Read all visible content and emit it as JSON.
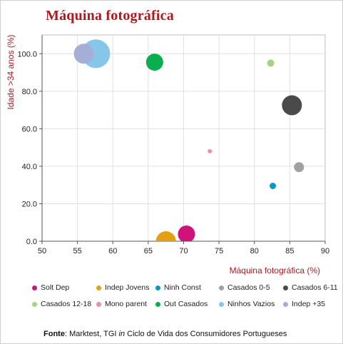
{
  "chart_data": {
    "type": "scatter",
    "title": "Máquina fotográfica",
    "xlabel": "Máquina fotográfica (%)",
    "ylabel": "Idade >34 anos (%)",
    "xlim": [
      50,
      90
    ],
    "ylim": [
      0,
      110
    ],
    "x_ticks": [
      "50",
      "55",
      "60",
      "65",
      "70",
      "75",
      "80",
      "85",
      "90"
    ],
    "y_ticks": [
      "0.0",
      "20.0",
      "40.0",
      "60.0",
      "80.0",
      "100.0"
    ],
    "grid": true,
    "legend_position": "bottom",
    "series": [
      {
        "name": "Solt Dep",
        "color": "#d0127b",
        "x": 70.4,
        "y": 3.8,
        "size": 12
      },
      {
        "name": "Indep Jovens",
        "color": "#e3a010",
        "x": 67.5,
        "y": 0.0,
        "size": 14
      },
      {
        "name": "Ninh Const",
        "color": "#1296c8",
        "x": 82.6,
        "y": 29.5,
        "size": 4.5
      },
      {
        "name": "Casados 0-5",
        "color": "#a0a0a0",
        "x": 86.3,
        "y": 39.5,
        "size": 7
      },
      {
        "name": "Casados 6-11",
        "color": "#4a4a4a",
        "x": 85.3,
        "y": 72.5,
        "size": 14
      },
      {
        "name": "Casados  12-18",
        "color": "#a3d67c",
        "x": 82.3,
        "y": 95.0,
        "size": 5
      },
      {
        "name": "Mono parent",
        "color": "#ee8ca9",
        "x": 73.7,
        "y": 48.0,
        "size": 3
      },
      {
        "name": "Out Casados",
        "color": "#0aae4f",
        "x": 65.9,
        "y": 95.5,
        "size": 12
      },
      {
        "name": "Ninhos Vazios",
        "color": "#86c6e8",
        "x": 57.6,
        "y": 100.0,
        "size": 20
      },
      {
        "name": "Indep +35",
        "color": "#a5aed6",
        "x": 55.9,
        "y": 100.0,
        "size": 14
      }
    ]
  },
  "source": {
    "label": "Fonte",
    "sep": ": Marktest, TGI ",
    "in_word": "in",
    "rest": " Ciclo de Vida dos Consumidores Portugueses"
  }
}
